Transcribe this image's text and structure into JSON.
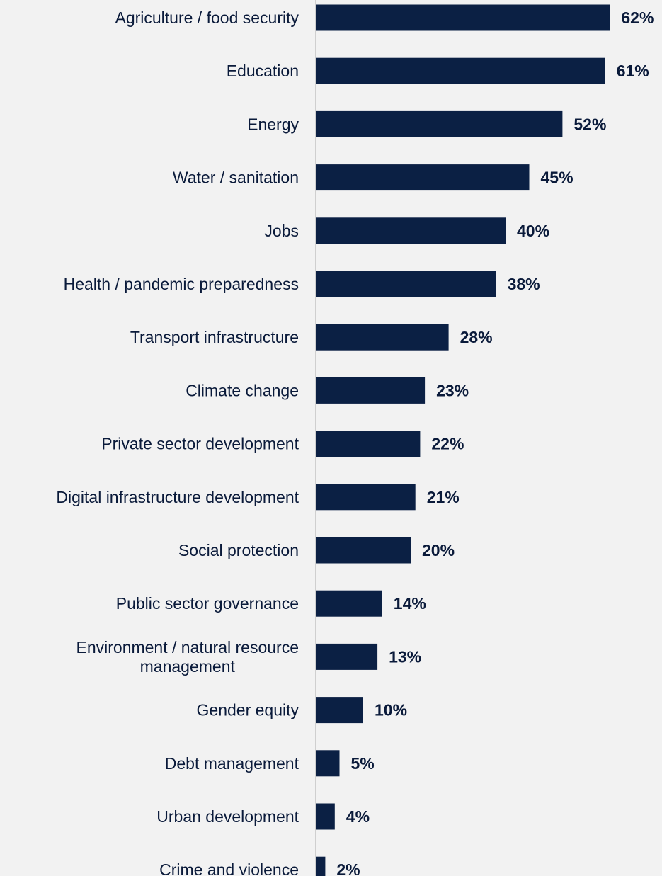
{
  "colors": {
    "bar": "#0b2044",
    "axis": "#cfcfcf",
    "text": "#0a1a3a",
    "background": "#f2f2f2"
  },
  "chart_data": {
    "type": "bar",
    "orientation": "horizontal",
    "categories": [
      "Agriculture / food security",
      "Education",
      "Energy",
      "Water / sanitation",
      "Jobs",
      "Health / pandemic preparedness",
      "Transport infrastructure",
      "Climate change",
      "Private sector development",
      "Digital infrastructure development",
      "Social protection",
      "Public sector governance",
      [
        "Environment / natural resource",
        "management"
      ],
      "Gender equity",
      "Debt management",
      "Urban development",
      "Crime and violence"
    ],
    "values": [
      62,
      61,
      52,
      45,
      40,
      38,
      28,
      23,
      22,
      21,
      20,
      14,
      13,
      10,
      5,
      4,
      2
    ],
    "value_labels": [
      "62%",
      "61%",
      "52%",
      "45%",
      "40%",
      "38%",
      "28%",
      "23%",
      "22%",
      "21%",
      "20%",
      "14%",
      "13%",
      "10%",
      "5%",
      "4%",
      "2%"
    ],
    "unit": "%",
    "grid": false,
    "legend": "none"
  }
}
